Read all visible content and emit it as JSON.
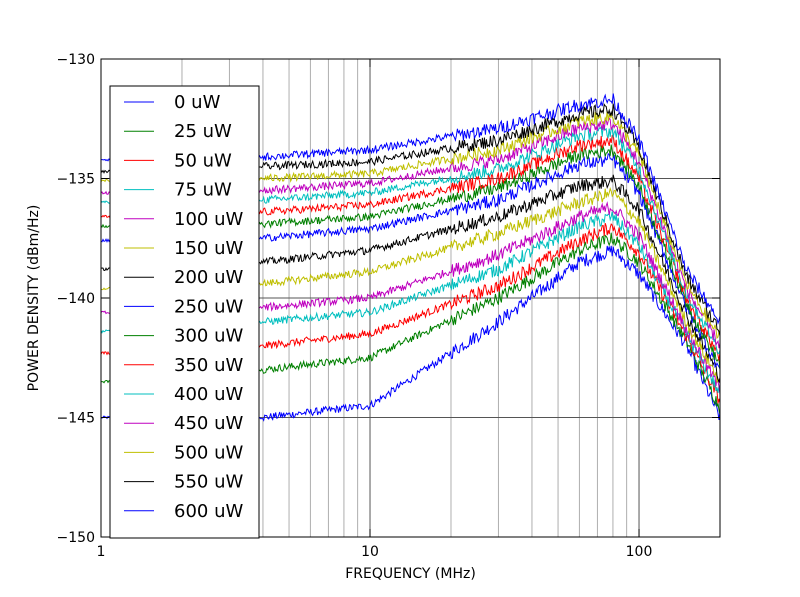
{
  "chart_data": {
    "type": "line",
    "title": "",
    "xlabel": "FREQUENCY (MHz)",
    "ylabel": "POWER DENSITY (dBm/Hz)",
    "x_scale": "log",
    "xlim": [
      1,
      200
    ],
    "ylim": [
      -150,
      -130
    ],
    "x_ticks": [
      1,
      10,
      100
    ],
    "x_tick_labels": [
      "1",
      "10",
      "100"
    ],
    "y_ticks": [
      -150,
      -145,
      -140,
      -135,
      -130
    ],
    "y_tick_labels": [
      "−150",
      "−145",
      "−140",
      "−135",
      "−130"
    ],
    "grid": true,
    "legend_position": "upper-left",
    "x": [
      1,
      2,
      4,
      10,
      30,
      60,
      80,
      100,
      150,
      200
    ],
    "series": [
      {
        "name": "0 uW",
        "color": "#0000ff",
        "values": [
          -145.0,
          -145.0,
          -145.0,
          -144.5,
          -141.0,
          -138.5,
          -138.0,
          -139.0,
          -142.0,
          -145.0
        ]
      },
      {
        "name": "25 uW",
        "color": "#008000",
        "values": [
          -143.5,
          -143.5,
          -143.0,
          -142.5,
          -140.0,
          -138.0,
          -137.5,
          -138.5,
          -141.8,
          -144.6
        ]
      },
      {
        "name": "50 uW",
        "color": "#ff0000",
        "values": [
          -142.3,
          -142.3,
          -142.0,
          -141.5,
          -139.5,
          -137.6,
          -137.0,
          -138.1,
          -141.6,
          -144.3
        ]
      },
      {
        "name": "75 uW",
        "color": "#00bfbf",
        "values": [
          -141.4,
          -141.3,
          -141.0,
          -140.6,
          -138.8,
          -137.0,
          -136.6,
          -137.8,
          -141.5,
          -144.0
        ]
      },
      {
        "name": "100 uW",
        "color": "#bf00bf",
        "values": [
          -140.6,
          -140.5,
          -140.4,
          -140.0,
          -138.2,
          -136.6,
          -136.2,
          -137.4,
          -141.3,
          -143.8
        ]
      },
      {
        "name": "150 uW",
        "color": "#bfbf00",
        "values": [
          -139.6,
          -139.6,
          -139.4,
          -138.9,
          -137.3,
          -136.0,
          -135.6,
          -136.8,
          -141.0,
          -143.5
        ]
      },
      {
        "name": "200 uW",
        "color": "#000000",
        "values": [
          -138.8,
          -138.7,
          -138.5,
          -138.0,
          -136.6,
          -135.3,
          -135.1,
          -136.3,
          -140.7,
          -143.3
        ]
      },
      {
        "name": "250 uW",
        "color": "#0000ff",
        "values": [
          -137.6,
          -137.6,
          -137.5,
          -137.1,
          -135.9,
          -134.4,
          -134.2,
          -135.6,
          -140.4,
          -143.0
        ]
      },
      {
        "name": "300 uW",
        "color": "#008000",
        "values": [
          -137.0,
          -137.0,
          -136.9,
          -136.6,
          -135.4,
          -134.0,
          -133.8,
          -135.3,
          -140.2,
          -142.8
        ]
      },
      {
        "name": "350 uW",
        "color": "#ff0000",
        "values": [
          -136.6,
          -136.5,
          -136.4,
          -136.1,
          -135.0,
          -133.6,
          -133.4,
          -135.0,
          -140.0,
          -142.5
        ]
      },
      {
        "name": "400 uW",
        "color": "#00bfbf",
        "values": [
          -136.0,
          -136.0,
          -135.9,
          -135.6,
          -134.6,
          -133.2,
          -133.0,
          -134.6,
          -139.8,
          -142.2
        ]
      },
      {
        "name": "450 uW",
        "color": "#bf00bf",
        "values": [
          -135.6,
          -135.6,
          -135.5,
          -135.2,
          -134.2,
          -132.9,
          -132.7,
          -134.3,
          -139.6,
          -142.0
        ]
      },
      {
        "name": "500 uW",
        "color": "#bfbf00",
        "values": [
          -135.1,
          -135.1,
          -135.0,
          -134.8,
          -133.8,
          -132.6,
          -132.4,
          -134.0,
          -139.4,
          -141.7
        ]
      },
      {
        "name": "550 uW",
        "color": "#000000",
        "values": [
          -134.7,
          -134.6,
          -134.5,
          -134.3,
          -133.4,
          -132.3,
          -132.1,
          -133.7,
          -139.1,
          -141.4
        ]
      },
      {
        "name": "600 uW",
        "color": "#0000ff",
        "values": [
          -134.2,
          -134.2,
          -134.1,
          -133.8,
          -132.9,
          -131.9,
          -131.7,
          -133.4,
          -138.8,
          -141.0
        ]
      }
    ]
  }
}
